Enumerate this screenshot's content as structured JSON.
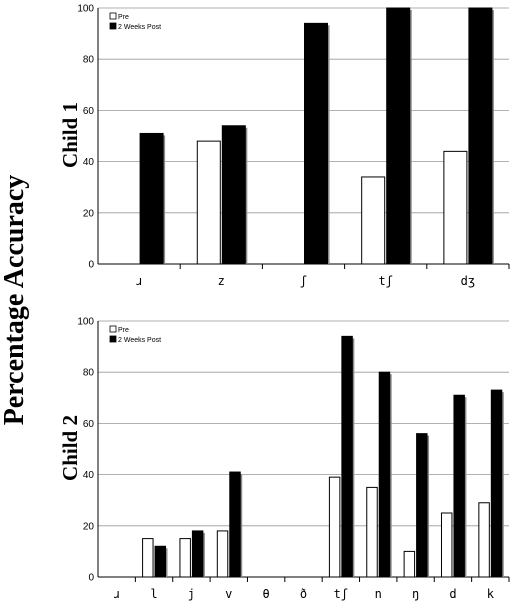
{
  "figure": {
    "ylabel": "Percentage Accuracy"
  },
  "chart_data": [
    {
      "type": "bar",
      "panel_label": "Child 1",
      "categories": [
        "ɹ",
        "z",
        "ʃ",
        "tʃ",
        "dʒ"
      ],
      "series": [
        {
          "name": "Pre",
          "values": [
            0,
            48,
            0,
            34,
            44
          ],
          "color": "#ffffff"
        },
        {
          "name": "2 Weeks Post",
          "values": [
            51,
            54,
            94,
            100,
            100
          ],
          "color": "#000000"
        }
      ],
      "ylim": [
        0,
        100
      ],
      "yticks": [
        0,
        20,
        40,
        60,
        80,
        100
      ],
      "grid": true,
      "legend_position": "top-left"
    },
    {
      "type": "bar",
      "panel_label": "Child 2",
      "categories": [
        "ɹ",
        "l",
        "j",
        "v",
        "θ",
        "ð",
        "tʃ",
        "n",
        "ŋ",
        "d",
        "k"
      ],
      "series": [
        {
          "name": "Pre",
          "values": [
            0,
            15,
            15,
            18,
            0,
            0,
            39,
            35,
            10,
            25,
            29
          ],
          "color": "#ffffff"
        },
        {
          "name": "2 Weeks Post",
          "values": [
            0,
            12,
            18,
            41,
            0,
            0,
            94,
            80,
            56,
            71,
            73
          ],
          "color": "#000000"
        }
      ],
      "ylim": [
        0,
        100
      ],
      "yticks": [
        0,
        20,
        40,
        60,
        80,
        100
      ],
      "grid": true,
      "legend_position": "top-left"
    }
  ]
}
